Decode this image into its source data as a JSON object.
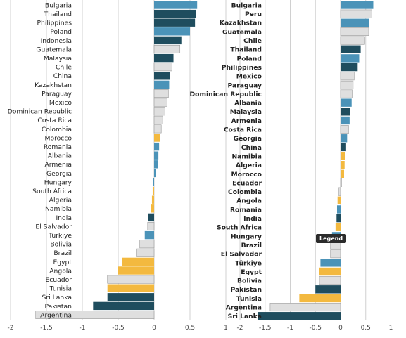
{
  "colors": {
    "light_blue": "#4b93b8",
    "dark_teal": "#1f4d5e",
    "yellow": "#f3b93f",
    "gray": "#dfdfdf",
    "gridline": "#d0d0d0",
    "label_text": "#222222",
    "tick_text": "#444444"
  },
  "legend_button": {
    "label": "Legend"
  },
  "chart_data": [
    {
      "type": "bar",
      "orientation": "horizontal",
      "xlim": [
        -2,
        1
      ],
      "xticks": [
        "-2",
        "-1.5",
        "-1",
        "-0.5",
        "0",
        "0.5",
        "1"
      ],
      "tick_values": [
        -2,
        -1.5,
        -1,
        -0.5,
        0,
        0.5,
        1
      ],
      "gridlines": "vertical",
      "bars": [
        {
          "label": "Bulgaria",
          "value": 0.6,
          "color": "light_blue"
        },
        {
          "label": "Thailand",
          "value": 0.58,
          "color": "dark_teal"
        },
        {
          "label": "Philippines",
          "value": 0.57,
          "color": "dark_teal"
        },
        {
          "label": "Poland",
          "value": 0.5,
          "color": "light_blue"
        },
        {
          "label": "Indonesia",
          "value": 0.38,
          "color": "dark_teal"
        },
        {
          "label": "Guatemala",
          "value": 0.36,
          "color": "gray"
        },
        {
          "label": "Malaysia",
          "value": 0.27,
          "color": "dark_teal"
        },
        {
          "label": "Chile",
          "value": 0.25,
          "color": "gray"
        },
        {
          "label": "China",
          "value": 0.22,
          "color": "dark_teal"
        },
        {
          "label": "Kazakhstan",
          "value": 0.21,
          "color": "light_blue"
        },
        {
          "label": "Paraguay",
          "value": 0.2,
          "color": "gray"
        },
        {
          "label": "Mexico",
          "value": 0.18,
          "color": "gray"
        },
        {
          "label": "Dominican Republic",
          "value": 0.15,
          "color": "gray"
        },
        {
          "label": "Costa Rica",
          "value": 0.12,
          "color": "gray"
        },
        {
          "label": "Colombia",
          "value": 0.1,
          "color": "gray"
        },
        {
          "label": "Morocco",
          "value": 0.08,
          "color": "yellow"
        },
        {
          "label": "Romania",
          "value": 0.07,
          "color": "light_blue"
        },
        {
          "label": "Albania",
          "value": 0.06,
          "color": "light_blue"
        },
        {
          "label": "Armenia",
          "value": 0.05,
          "color": "light_blue"
        },
        {
          "label": "Georgia",
          "value": 0.02,
          "color": "light_blue"
        },
        {
          "label": "Hungary",
          "value": -0.01,
          "color": "light_blue"
        },
        {
          "label": "South Africa",
          "value": -0.02,
          "color": "yellow"
        },
        {
          "label": "Algeria",
          "value": -0.03,
          "color": "yellow"
        },
        {
          "label": "Namibia",
          "value": -0.04,
          "color": "yellow"
        },
        {
          "label": "India",
          "value": -0.08,
          "color": "dark_teal"
        },
        {
          "label": "El Salvador",
          "value": -0.09,
          "color": "gray"
        },
        {
          "label": "Türkiye",
          "value": -0.13,
          "color": "light_blue"
        },
        {
          "label": "Bolivia",
          "value": -0.2,
          "color": "gray"
        },
        {
          "label": "Brazil",
          "value": -0.25,
          "color": "gray"
        },
        {
          "label": "Egypt",
          "value": -0.45,
          "color": "yellow"
        },
        {
          "label": "Angola",
          "value": -0.5,
          "color": "yellow"
        },
        {
          "label": "Ecuador",
          "value": -0.65,
          "color": "gray"
        },
        {
          "label": "Tunisia",
          "value": -0.65,
          "color": "yellow"
        },
        {
          "label": "Sri Lanka",
          "value": -0.65,
          "color": "dark_teal"
        },
        {
          "label": "Pakistan",
          "value": -0.85,
          "color": "dark_teal"
        },
        {
          "label": "Argentina",
          "value": -1.65,
          "color": "gray"
        }
      ]
    },
    {
      "type": "bar",
      "orientation": "horizontal",
      "xlim": [
        -2,
        1
      ],
      "xticks": [
        "-2",
        "-1.5",
        "-1",
        "-0.5",
        "0",
        "0.5",
        "1"
      ],
      "tick_values": [
        -2,
        -1.5,
        -1,
        -0.5,
        0,
        0.5,
        1
      ],
      "gridlines": "vertical",
      "bars": [
        {
          "label": "Bulgaria",
          "value": 0.65,
          "color": "light_blue"
        },
        {
          "label": "Peru",
          "value": 0.62,
          "color": "gray"
        },
        {
          "label": "Kazakhstan",
          "value": 0.57,
          "color": "light_blue"
        },
        {
          "label": "Guatemala",
          "value": 0.56,
          "color": "gray"
        },
        {
          "label": "Chile",
          "value": 0.48,
          "color": "gray"
        },
        {
          "label": "Thailand",
          "value": 0.4,
          "color": "dark_teal"
        },
        {
          "label": "Poland",
          "value": 0.37,
          "color": "light_blue"
        },
        {
          "label": "Philippines",
          "value": 0.34,
          "color": "dark_teal"
        },
        {
          "label": "Mexico",
          "value": 0.27,
          "color": "gray"
        },
        {
          "label": "Paraguay",
          "value": 0.25,
          "color": "gray"
        },
        {
          "label": "Dominican Republic",
          "value": 0.23,
          "color": "gray"
        },
        {
          "label": "Albania",
          "value": 0.22,
          "color": "light_blue"
        },
        {
          "label": "Malaysia",
          "value": 0.19,
          "color": "dark_teal"
        },
        {
          "label": "Armenia",
          "value": 0.18,
          "color": "light_blue"
        },
        {
          "label": "Costa Rica",
          "value": 0.16,
          "color": "gray"
        },
        {
          "label": "Georgia",
          "value": 0.13,
          "color": "light_blue"
        },
        {
          "label": "China",
          "value": 0.11,
          "color": "dark_teal"
        },
        {
          "label": "Namibia",
          "value": 0.09,
          "color": "yellow"
        },
        {
          "label": "Algeria",
          "value": 0.08,
          "color": "yellow"
        },
        {
          "label": "Morocco",
          "value": 0.07,
          "color": "yellow"
        },
        {
          "label": "Ecuador",
          "value": 0.02,
          "color": "gray"
        },
        {
          "label": "Colombia",
          "value": -0.04,
          "color": "gray"
        },
        {
          "label": "Angola",
          "value": -0.06,
          "color": "yellow"
        },
        {
          "label": "Romania",
          "value": -0.07,
          "color": "light_blue"
        },
        {
          "label": "India",
          "value": -0.08,
          "color": "dark_teal"
        },
        {
          "label": "South Africa",
          "value": -0.1,
          "color": "yellow"
        },
        {
          "label": "Hungary",
          "value": -0.17,
          "color": "light_blue"
        },
        {
          "label": "Brazil",
          "value": -0.2,
          "color": "gray"
        },
        {
          "label": "El Salvador",
          "value": -0.2,
          "color": "gray"
        },
        {
          "label": "Türkiye",
          "value": -0.4,
          "color": "light_blue"
        },
        {
          "label": "Egypt",
          "value": -0.42,
          "color": "yellow"
        },
        {
          "label": "Bolivia",
          "value": -0.42,
          "color": "gray"
        },
        {
          "label": "Pakistan",
          "value": -0.5,
          "color": "dark_teal"
        },
        {
          "label": "Tunisia",
          "value": -0.82,
          "color": "yellow"
        },
        {
          "label": "Argentina",
          "value": -1.4,
          "color": "gray"
        },
        {
          "label": "Sri Lanka",
          "value": -1.65,
          "color": "dark_teal"
        }
      ]
    }
  ]
}
